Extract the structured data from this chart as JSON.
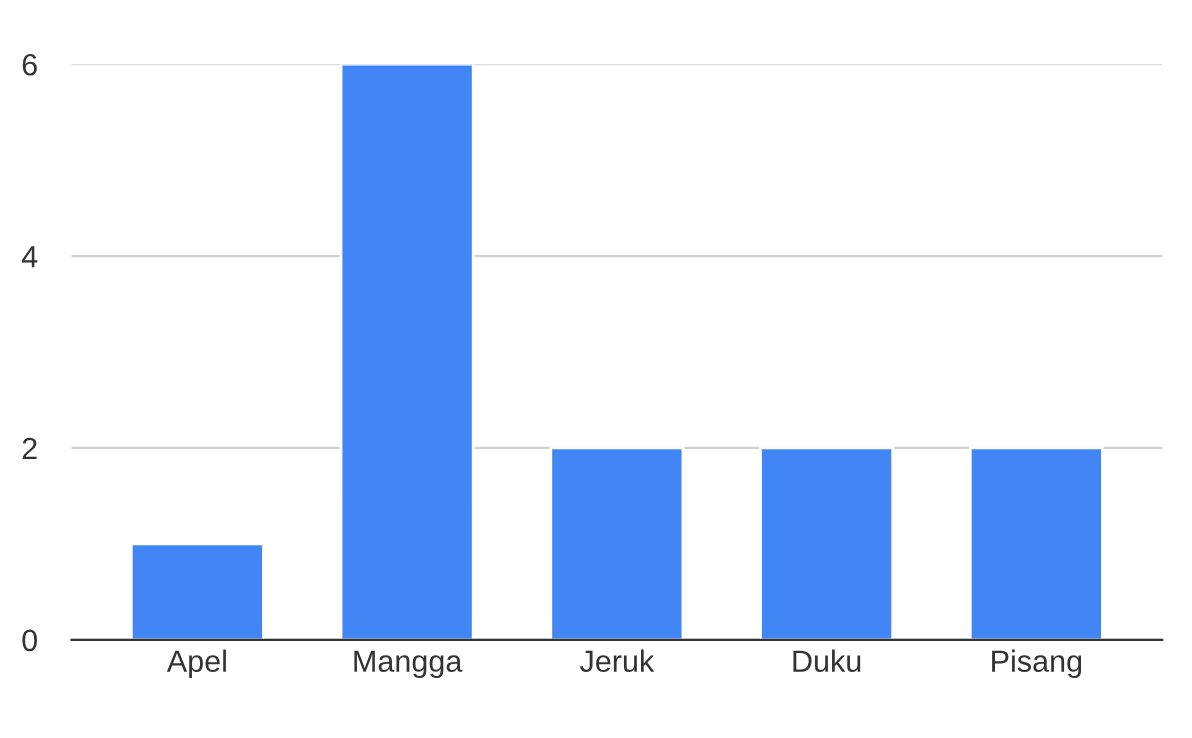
{
  "chart_data": {
    "type": "bar",
    "categories": [
      "Apel",
      "Mangga",
      "Jeruk",
      "Duku",
      "Pisang"
    ],
    "values": [
      1,
      6,
      2,
      2,
      2
    ],
    "color": "#4285f4",
    "ylim": [
      0,
      6
    ],
    "yticks": [
      0,
      2,
      4,
      6
    ],
    "grid": "y",
    "legend": false
  }
}
